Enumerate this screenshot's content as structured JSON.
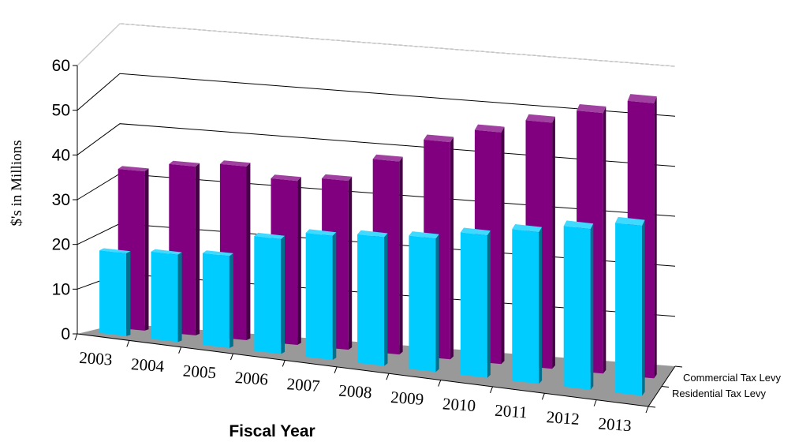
{
  "chart_data": {
    "type": "bar",
    "style": "3d-clustered-depth",
    "xlabel": "Fiscal Year",
    "ylabel": "$'s in Millions",
    "ylim": [
      0,
      60
    ],
    "yticks": [
      "0",
      "10",
      "20",
      "30",
      "40",
      "50",
      "60"
    ],
    "grid": true,
    "categories": [
      "2003",
      "2004",
      "2005",
      "2006",
      "2007",
      "2008",
      "2009",
      "2010",
      "2011",
      "2012",
      "2013"
    ],
    "series": [
      {
        "name": "Residential Tax Levy",
        "values": [
          18,
          19,
          20,
          25,
          27,
          28,
          29,
          31,
          33,
          35,
          37
        ],
        "color": "#00ccff"
      },
      {
        "name": "Commercial Tax Levy",
        "values": [
          33,
          35,
          36,
          34,
          35,
          40,
          45,
          48,
          51,
          54,
          57
        ],
        "color": "#800080"
      }
    ],
    "floor_color": "#999999"
  }
}
